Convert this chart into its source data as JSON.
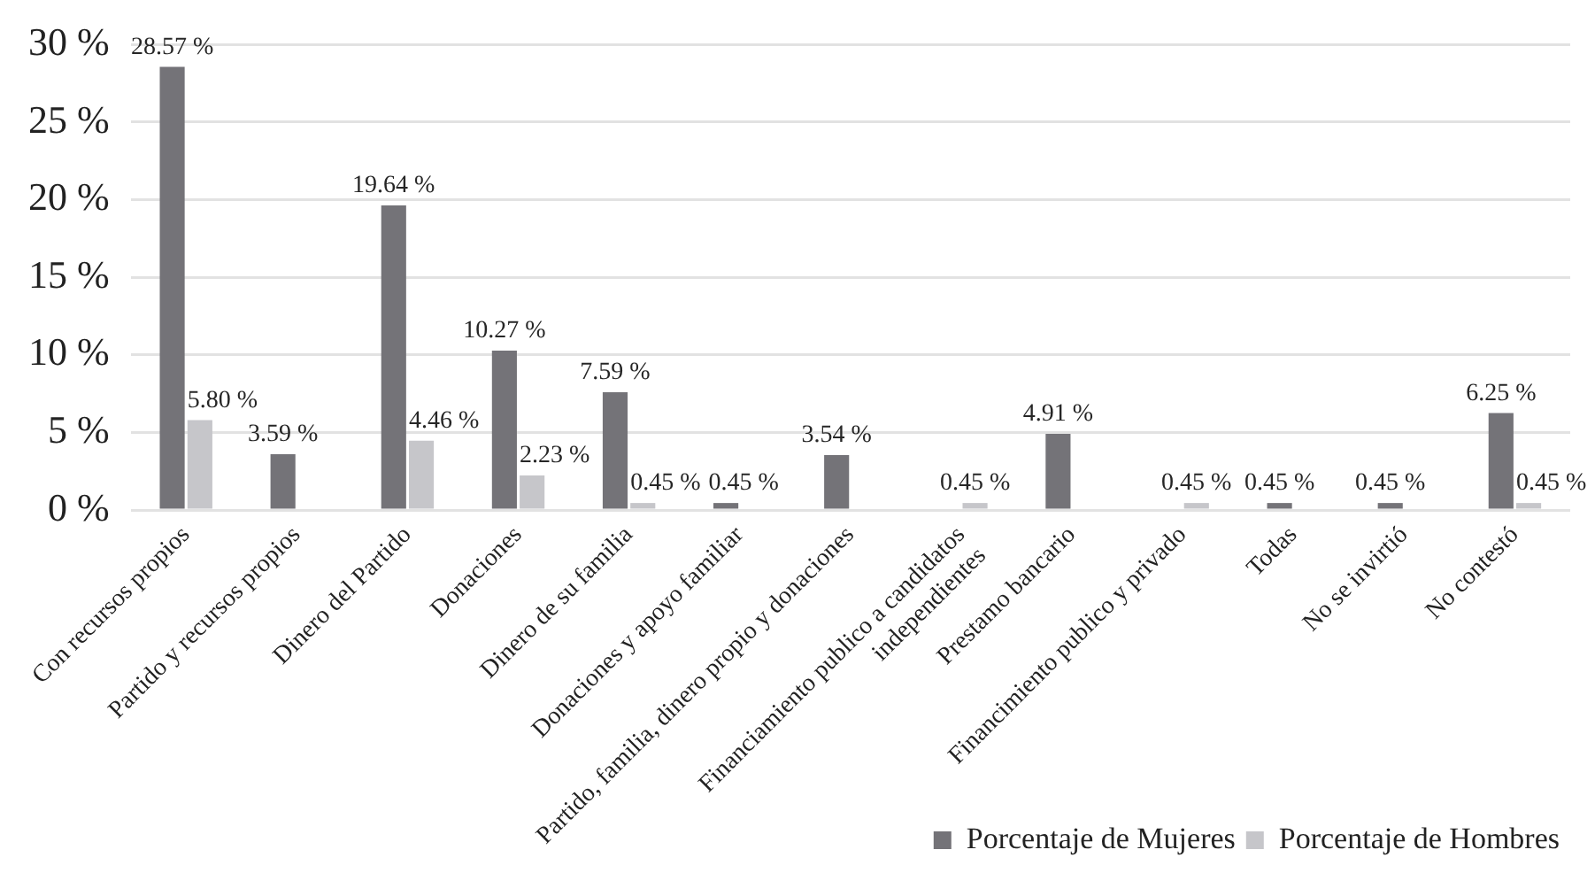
{
  "chart_data": {
    "type": "bar",
    "categories": [
      "Con recursos propios",
      "Partido y recursos propios",
      "Dinero del Partido",
      "Donaciones",
      "Dinero de su familia",
      "Donaciones y apoyo familiar",
      "Partido, familia, dinero propio y donaciones",
      "Financiamiento publico a candidatos\nindependientes",
      "Prestamo bancario",
      "Financimiento publico y privado",
      "Todas",
      "No se invirtió",
      "No contestó"
    ],
    "series": [
      {
        "name": "Porcentaje de Mujeres",
        "color": "#747378",
        "values": [
          28.57,
          3.59,
          19.64,
          10.27,
          7.59,
          0.45,
          3.54,
          null,
          4.91,
          null,
          0.45,
          0.45,
          6.25
        ],
        "value_labels": [
          "28.57 %",
          "3.59 %",
          "19.64 %",
          "10.27 %",
          "7.59 %",
          "0.45 %",
          "3.54 %",
          null,
          "4.91 %",
          null,
          "0.45 %",
          "0.45 %",
          "6.25 %"
        ]
      },
      {
        "name": "Porcentaje de Hombres",
        "color": "#c6c6ca",
        "values": [
          5.8,
          null,
          4.46,
          2.23,
          0.45,
          null,
          null,
          0.45,
          null,
          0.45,
          null,
          null,
          0.45
        ],
        "value_labels": [
          "5.80 %",
          null,
          "4.46 %",
          "2.23 %",
          "0.45 %",
          null,
          null,
          "0.45 %",
          null,
          "0.45 %",
          null,
          null,
          "0.45 %"
        ]
      }
    ],
    "ylim": [
      0,
      30
    ],
    "yticks": [
      {
        "value": 0,
        "label": "0 %"
      },
      {
        "value": 5,
        "label": "5 %"
      },
      {
        "value": 10,
        "label": "10 %"
      },
      {
        "value": 15,
        "label": "15 %"
      },
      {
        "value": 20,
        "label": "20 %"
      },
      {
        "value": 25,
        "label": "25 %"
      },
      {
        "value": 30,
        "label": "30 %"
      }
    ],
    "grid": "y",
    "legend": "bottom right"
  }
}
